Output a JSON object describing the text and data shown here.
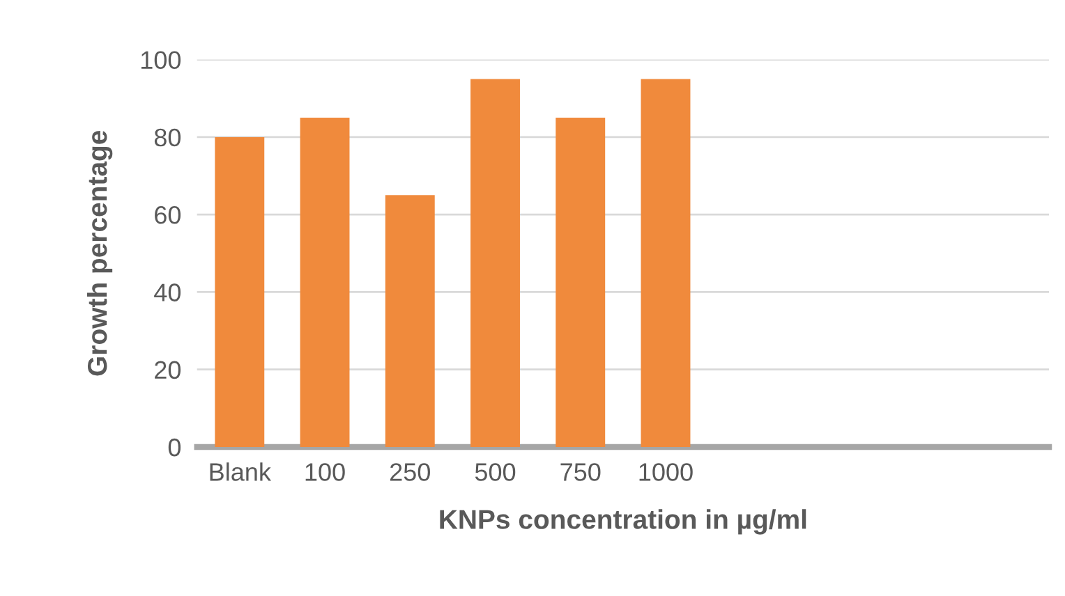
{
  "chart_data": {
    "type": "bar",
    "xlabel": "KNPs concentration in µg/ml",
    "ylabel": "Growth percentage",
    "categories": [
      "Blank",
      "100",
      "250",
      "500",
      "750",
      "1000",
      null,
      null,
      null,
      null
    ],
    "values": [
      80,
      85,
      65,
      95,
      85,
      95,
      null,
      null,
      null,
      null
    ],
    "color": "#f08a3c",
    "ylim": [
      0,
      100
    ],
    "yticks": [
      0,
      20,
      40,
      60,
      80,
      100
    ],
    "grid": "y",
    "legend": false
  }
}
